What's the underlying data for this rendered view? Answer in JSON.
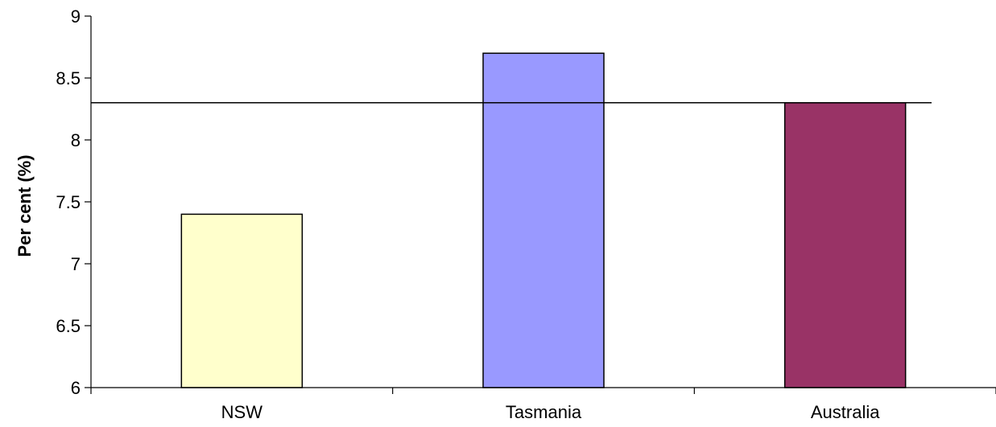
{
  "chart_data": {
    "type": "bar",
    "categories": [
      "NSW",
      "Tasmania",
      "Australia"
    ],
    "values": [
      7.4,
      8.7,
      8.3
    ],
    "colors": [
      "#FFFFCC",
      "#9999FF",
      "#993366"
    ],
    "ylabel": "Per cent (%)",
    "xlabel": "",
    "title": "",
    "ylim": [
      6,
      9
    ],
    "yticks": [
      6,
      6.5,
      7,
      7.5,
      8,
      8.5,
      9
    ],
    "ytick_labels": [
      "6",
      "6.5",
      "7",
      "7.5",
      "8",
      "8.5",
      "9"
    ],
    "reference_line": 8.3,
    "grid": false,
    "legend": "none"
  }
}
